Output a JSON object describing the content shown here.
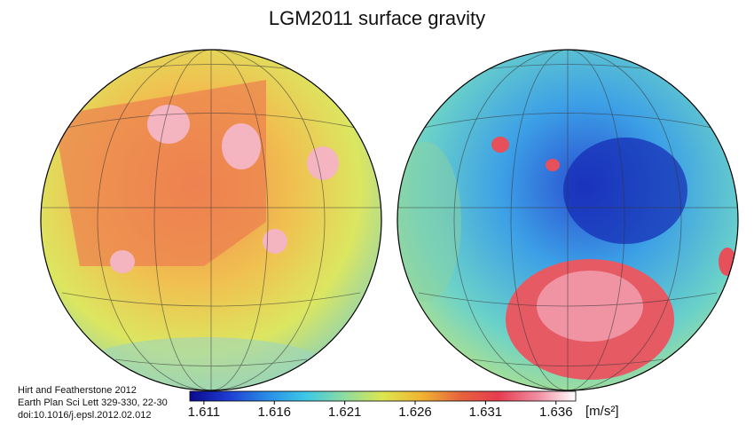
{
  "title": "LGM2011 surface gravity",
  "citation": [
    "Hirt and Featherstone 2012",
    "Earth Plan Sci Lett 329-330, 22-30",
    "doi:10.1016/j.epsl.2012.02.012"
  ],
  "colorbar": {
    "lim": [
      1.61,
      1.6374
    ],
    "ticks": [
      1.611,
      1.616,
      1.621,
      1.626,
      1.631,
      1.636
    ],
    "unit": "[m/s²]",
    "colors": [
      "#0a0a8c",
      "#1e3cd2",
      "#2a8ce6",
      "#3cc8e6",
      "#8cdca0",
      "#dce650",
      "#f0b432",
      "#e6643c",
      "#e63c50",
      "#f08ca0",
      "#ffffff"
    ]
  }
}
